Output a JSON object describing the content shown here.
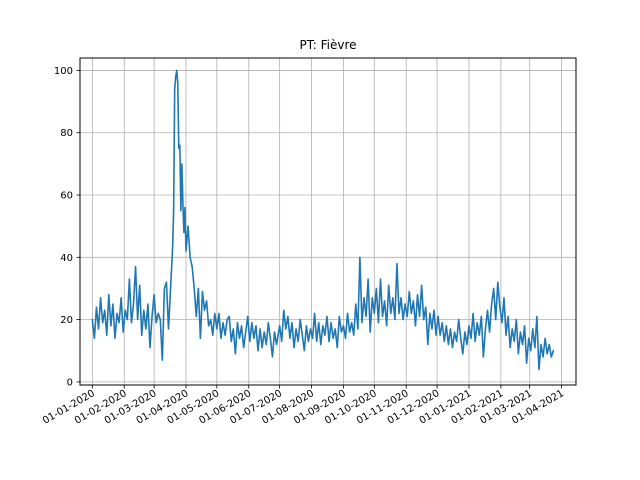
{
  "chart_data": {
    "type": "line",
    "title": "PT: Fièvre",
    "xlabel": "",
    "ylabel": "",
    "grid": true,
    "legend": "none",
    "xlim": [
      "2019-12-20",
      "2021-04-15"
    ],
    "ylim": [
      -1,
      104
    ],
    "x_tick_labels": [
      "01-01-2020",
      "01-02-2020",
      "01-03-2020",
      "01-04-2020",
      "01-05-2020",
      "01-06-2020",
      "01-07-2020",
      "01-08-2020",
      "01-09-2020",
      "01-10-2020",
      "01-11-2020",
      "01-12-2020",
      "01-01-2021",
      "01-02-2021",
      "01-03-2021",
      "01-04-2021"
    ],
    "x_tick_dates": [
      "2020-01-01",
      "2020-02-01",
      "2020-03-01",
      "2020-04-01",
      "2020-05-01",
      "2020-06-01",
      "2020-07-01",
      "2020-08-01",
      "2020-09-01",
      "2020-10-01",
      "2020-11-01",
      "2020-12-01",
      "2021-01-01",
      "2021-02-01",
      "2021-03-01",
      "2021-04-01"
    ],
    "y_ticks": [
      0,
      20,
      40,
      60,
      80,
      100
    ],
    "series": [
      {
        "color": "#1f77b4",
        "points": [
          [
            "2020-01-01",
            20
          ],
          [
            "2020-01-03",
            14
          ],
          [
            "2020-01-05",
            24
          ],
          [
            "2020-01-07",
            17
          ],
          [
            "2020-01-09",
            27
          ],
          [
            "2020-01-11",
            19
          ],
          [
            "2020-01-13",
            23
          ],
          [
            "2020-01-15",
            15
          ],
          [
            "2020-01-17",
            28
          ],
          [
            "2020-01-19",
            18
          ],
          [
            "2020-01-21",
            25
          ],
          [
            "2020-01-23",
            14
          ],
          [
            "2020-01-25",
            22
          ],
          [
            "2020-01-27",
            19
          ],
          [
            "2020-01-29",
            27
          ],
          [
            "2020-01-31",
            16
          ],
          [
            "2020-02-02",
            23
          ],
          [
            "2020-02-04",
            20
          ],
          [
            "2020-02-06",
            33
          ],
          [
            "2020-02-08",
            19
          ],
          [
            "2020-02-10",
            25
          ],
          [
            "2020-02-12",
            37
          ],
          [
            "2020-02-14",
            20
          ],
          [
            "2020-02-16",
            31
          ],
          [
            "2020-02-18",
            15
          ],
          [
            "2020-02-20",
            23
          ],
          [
            "2020-02-22",
            17
          ],
          [
            "2020-02-24",
            25
          ],
          [
            "2020-02-26",
            11
          ],
          [
            "2020-02-28",
            21
          ],
          [
            "2020-03-01",
            28
          ],
          [
            "2020-03-03",
            19
          ],
          [
            "2020-03-05",
            22
          ],
          [
            "2020-03-07",
            20
          ],
          [
            "2020-03-09",
            7
          ],
          [
            "2020-03-11",
            30
          ],
          [
            "2020-03-13",
            32
          ],
          [
            "2020-03-15",
            17
          ],
          [
            "2020-03-17",
            30
          ],
          [
            "2020-03-19",
            43
          ],
          [
            "2020-03-20",
            55
          ],
          [
            "2020-03-21",
            94
          ],
          [
            "2020-03-22",
            98
          ],
          [
            "2020-03-23",
            100
          ],
          [
            "2020-03-24",
            96
          ],
          [
            "2020-03-25",
            75
          ],
          [
            "2020-03-26",
            76
          ],
          [
            "2020-03-27",
            55
          ],
          [
            "2020-03-28",
            70
          ],
          [
            "2020-03-29",
            57
          ],
          [
            "2020-03-30",
            48
          ],
          [
            "2020-03-31",
            56
          ],
          [
            "2020-04-01",
            42
          ],
          [
            "2020-04-03",
            50
          ],
          [
            "2020-04-05",
            40
          ],
          [
            "2020-04-07",
            37
          ],
          [
            "2020-04-09",
            30
          ],
          [
            "2020-04-11",
            21
          ],
          [
            "2020-04-13",
            30
          ],
          [
            "2020-04-15",
            14
          ],
          [
            "2020-04-17",
            29
          ],
          [
            "2020-04-19",
            23
          ],
          [
            "2020-04-21",
            26
          ],
          [
            "2020-04-23",
            18
          ],
          [
            "2020-04-25",
            20
          ],
          [
            "2020-04-27",
            15
          ],
          [
            "2020-04-29",
            22
          ],
          [
            "2020-05-01",
            17
          ],
          [
            "2020-05-03",
            22
          ],
          [
            "2020-05-05",
            14
          ],
          [
            "2020-05-07",
            19
          ],
          [
            "2020-05-09",
            15
          ],
          [
            "2020-05-11",
            20
          ],
          [
            "2020-05-13",
            21
          ],
          [
            "2020-05-15",
            13
          ],
          [
            "2020-05-17",
            17
          ],
          [
            "2020-05-19",
            9
          ],
          [
            "2020-05-21",
            19
          ],
          [
            "2020-05-23",
            14
          ],
          [
            "2020-05-25",
            18
          ],
          [
            "2020-05-27",
            11
          ],
          [
            "2020-05-29",
            16
          ],
          [
            "2020-05-31",
            21
          ],
          [
            "2020-06-02",
            13
          ],
          [
            "2020-06-04",
            19
          ],
          [
            "2020-06-06",
            14
          ],
          [
            "2020-06-08",
            18
          ],
          [
            "2020-06-10",
            10
          ],
          [
            "2020-06-12",
            17
          ],
          [
            "2020-06-14",
            11
          ],
          [
            "2020-06-16",
            16
          ],
          [
            "2020-06-18",
            12
          ],
          [
            "2020-06-20",
            19
          ],
          [
            "2020-06-22",
            14
          ],
          [
            "2020-06-24",
            8
          ],
          [
            "2020-06-26",
            16
          ],
          [
            "2020-06-28",
            12
          ],
          [
            "2020-07-01",
            18
          ],
          [
            "2020-07-03",
            13
          ],
          [
            "2020-07-05",
            23
          ],
          [
            "2020-07-07",
            17
          ],
          [
            "2020-07-09",
            21
          ],
          [
            "2020-07-11",
            14
          ],
          [
            "2020-07-13",
            19
          ],
          [
            "2020-07-15",
            11
          ],
          [
            "2020-07-17",
            17
          ],
          [
            "2020-07-19",
            13
          ],
          [
            "2020-07-21",
            20
          ],
          [
            "2020-07-23",
            15
          ],
          [
            "2020-07-25",
            10
          ],
          [
            "2020-07-27",
            18
          ],
          [
            "2020-07-29",
            13
          ],
          [
            "2020-07-31",
            17
          ],
          [
            "2020-08-02",
            14
          ],
          [
            "2020-08-04",
            22
          ],
          [
            "2020-08-06",
            13
          ],
          [
            "2020-08-08",
            19
          ],
          [
            "2020-08-10",
            12
          ],
          [
            "2020-08-12",
            18
          ],
          [
            "2020-08-14",
            15
          ],
          [
            "2020-08-16",
            21
          ],
          [
            "2020-08-18",
            13
          ],
          [
            "2020-08-20",
            19
          ],
          [
            "2020-08-22",
            14
          ],
          [
            "2020-08-24",
            17
          ],
          [
            "2020-08-26",
            11
          ],
          [
            "2020-08-28",
            21
          ],
          [
            "2020-08-30",
            16
          ],
          [
            "2020-09-01",
            18
          ],
          [
            "2020-09-03",
            14
          ],
          [
            "2020-09-05",
            22
          ],
          [
            "2020-09-07",
            16
          ],
          [
            "2020-09-09",
            19
          ],
          [
            "2020-09-11",
            15
          ],
          [
            "2020-09-13",
            25
          ],
          [
            "2020-09-15",
            17
          ],
          [
            "2020-09-17",
            40
          ],
          [
            "2020-09-19",
            19
          ],
          [
            "2020-09-21",
            27
          ],
          [
            "2020-09-23",
            21
          ],
          [
            "2020-09-25",
            33
          ],
          [
            "2020-09-27",
            16
          ],
          [
            "2020-09-29",
            27
          ],
          [
            "2020-10-01",
            22
          ],
          [
            "2020-10-03",
            30
          ],
          [
            "2020-10-05",
            19
          ],
          [
            "2020-10-07",
            33
          ],
          [
            "2020-10-09",
            21
          ],
          [
            "2020-10-11",
            26
          ],
          [
            "2020-10-13",
            18
          ],
          [
            "2020-10-15",
            31
          ],
          [
            "2020-10-17",
            22
          ],
          [
            "2020-10-19",
            27
          ],
          [
            "2020-10-21",
            20
          ],
          [
            "2020-10-23",
            38
          ],
          [
            "2020-10-25",
            22
          ],
          [
            "2020-10-27",
            27
          ],
          [
            "2020-10-29",
            20
          ],
          [
            "2020-10-31",
            25
          ],
          [
            "2020-11-02",
            21
          ],
          [
            "2020-11-04",
            29
          ],
          [
            "2020-11-06",
            22
          ],
          [
            "2020-11-08",
            26
          ],
          [
            "2020-11-10",
            18
          ],
          [
            "2020-11-12",
            28
          ],
          [
            "2020-11-14",
            21
          ],
          [
            "2020-11-16",
            31
          ],
          [
            "2020-11-18",
            20
          ],
          [
            "2020-11-20",
            24
          ],
          [
            "2020-11-22",
            12
          ],
          [
            "2020-11-24",
            22
          ],
          [
            "2020-11-26",
            17
          ],
          [
            "2020-11-28",
            23
          ],
          [
            "2020-11-30",
            15
          ],
          [
            "2020-12-02",
            21
          ],
          [
            "2020-12-04",
            15
          ],
          [
            "2020-12-06",
            19
          ],
          [
            "2020-12-08",
            13
          ],
          [
            "2020-12-10",
            18
          ],
          [
            "2020-12-12",
            12
          ],
          [
            "2020-12-14",
            17
          ],
          [
            "2020-12-16",
            11
          ],
          [
            "2020-12-18",
            16
          ],
          [
            "2020-12-20",
            13
          ],
          [
            "2020-12-22",
            20
          ],
          [
            "2020-12-24",
            14
          ],
          [
            "2020-12-26",
            9
          ],
          [
            "2020-12-28",
            16
          ],
          [
            "2020-12-30",
            12
          ],
          [
            "2021-01-01",
            18
          ],
          [
            "2021-01-03",
            14
          ],
          [
            "2021-01-05",
            22
          ],
          [
            "2021-01-07",
            13
          ],
          [
            "2021-01-09",
            19
          ],
          [
            "2021-01-11",
            15
          ],
          [
            "2021-01-13",
            21
          ],
          [
            "2021-01-15",
            8
          ],
          [
            "2021-01-17",
            17
          ],
          [
            "2021-01-19",
            23
          ],
          [
            "2021-01-21",
            16
          ],
          [
            "2021-01-23",
            25
          ],
          [
            "2021-01-25",
            30
          ],
          [
            "2021-01-27",
            20
          ],
          [
            "2021-01-29",
            32
          ],
          [
            "2021-01-31",
            24
          ],
          [
            "2021-02-02",
            19
          ],
          [
            "2021-02-04",
            27
          ],
          [
            "2021-02-06",
            15
          ],
          [
            "2021-02-08",
            21
          ],
          [
            "2021-02-10",
            11
          ],
          [
            "2021-02-12",
            17
          ],
          [
            "2021-02-14",
            13
          ],
          [
            "2021-02-16",
            20
          ],
          [
            "2021-02-18",
            9
          ],
          [
            "2021-02-20",
            16
          ],
          [
            "2021-02-22",
            12
          ],
          [
            "2021-02-24",
            18
          ],
          [
            "2021-02-26",
            6
          ],
          [
            "2021-02-28",
            14
          ],
          [
            "2021-03-02",
            10
          ],
          [
            "2021-03-04",
            17
          ],
          [
            "2021-03-06",
            11
          ],
          [
            "2021-03-08",
            21
          ],
          [
            "2021-03-10",
            4
          ],
          [
            "2021-03-12",
            12
          ],
          [
            "2021-03-14",
            8
          ],
          [
            "2021-03-16",
            14
          ],
          [
            "2021-03-18",
            9
          ],
          [
            "2021-03-20",
            12
          ],
          [
            "2021-03-22",
            8
          ],
          [
            "2021-03-24",
            10
          ]
        ]
      }
    ]
  }
}
